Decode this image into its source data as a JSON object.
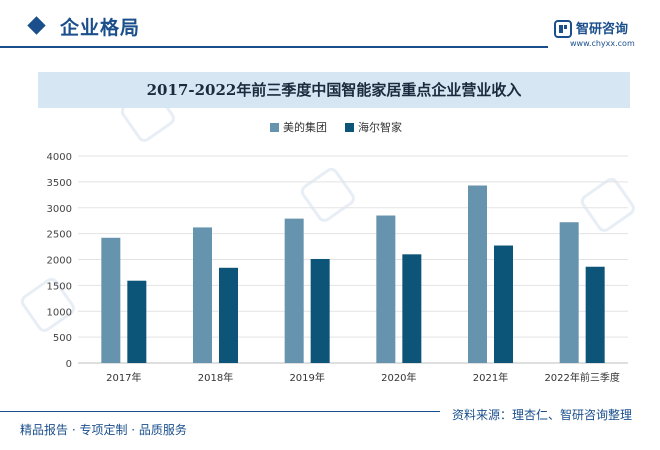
{
  "header": {
    "section_title": "企业格局",
    "logo_name": "智研咨询",
    "logo_url": "www.chyxx.com"
  },
  "footer": {
    "left_text": "精品报告 · 专项定制 · 品质服务",
    "source_text": "资料来源：理杏仁、智研咨询整理"
  },
  "colors": {
    "brand": "#1a4f8c",
    "series_1": "#6693ad",
    "series_2": "#0d5479",
    "title_bar": "#d6e6f3"
  },
  "icons": {
    "logo": "chyxx-logo-icon",
    "section_marker": "diamond-icon"
  },
  "chart_data": {
    "type": "bar",
    "title": "2017-2022年前三季度中国智能家居重点企业营业收入",
    "xlabel": "",
    "ylabel": "",
    "categories": [
      "2017年",
      "2018年",
      "2019年",
      "2020年",
      "2021年",
      "2022年前三季度"
    ],
    "series": [
      {
        "name": "美的集团",
        "values": [
          2420,
          2620,
          2790,
          2850,
          3430,
          2720
        ]
      },
      {
        "name": "海尔智家",
        "values": [
          1590,
          1840,
          2010,
          2100,
          2270,
          1860
        ]
      }
    ],
    "ylim": [
      0,
      4000
    ],
    "yticks": [
      "0",
      "500",
      "1000",
      "1500",
      "2000",
      "2500",
      "3000",
      "3500",
      "4000"
    ],
    "grid": true,
    "legend_position": "top-center"
  }
}
